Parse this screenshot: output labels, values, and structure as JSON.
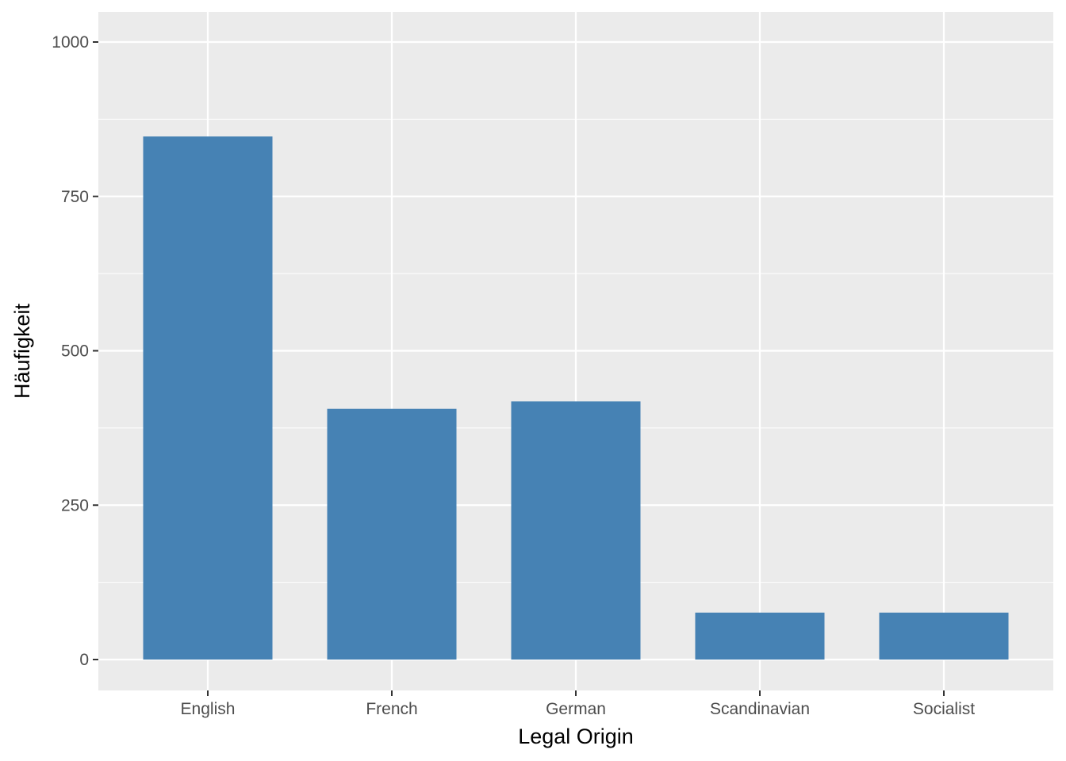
{
  "chart_data": {
    "type": "bar",
    "title": "",
    "xlabel": "Legal Origin",
    "ylabel": "Häufigkeit",
    "categories": [
      "English",
      "French",
      "German",
      "Scandinavian",
      "Socialist"
    ],
    "values": [
      847,
      406,
      418,
      76,
      76
    ],
    "ylim": [
      0,
      1000
    ],
    "yticks": [
      0,
      250,
      500,
      750,
      1000
    ],
    "ytick_labels": [
      "0",
      "250",
      "500",
      "750",
      "1000"
    ],
    "grid": true,
    "legend": "none",
    "colors": {
      "bar": "#4682b4",
      "panel": "#ebebeb",
      "grid": "#ffffff"
    }
  }
}
